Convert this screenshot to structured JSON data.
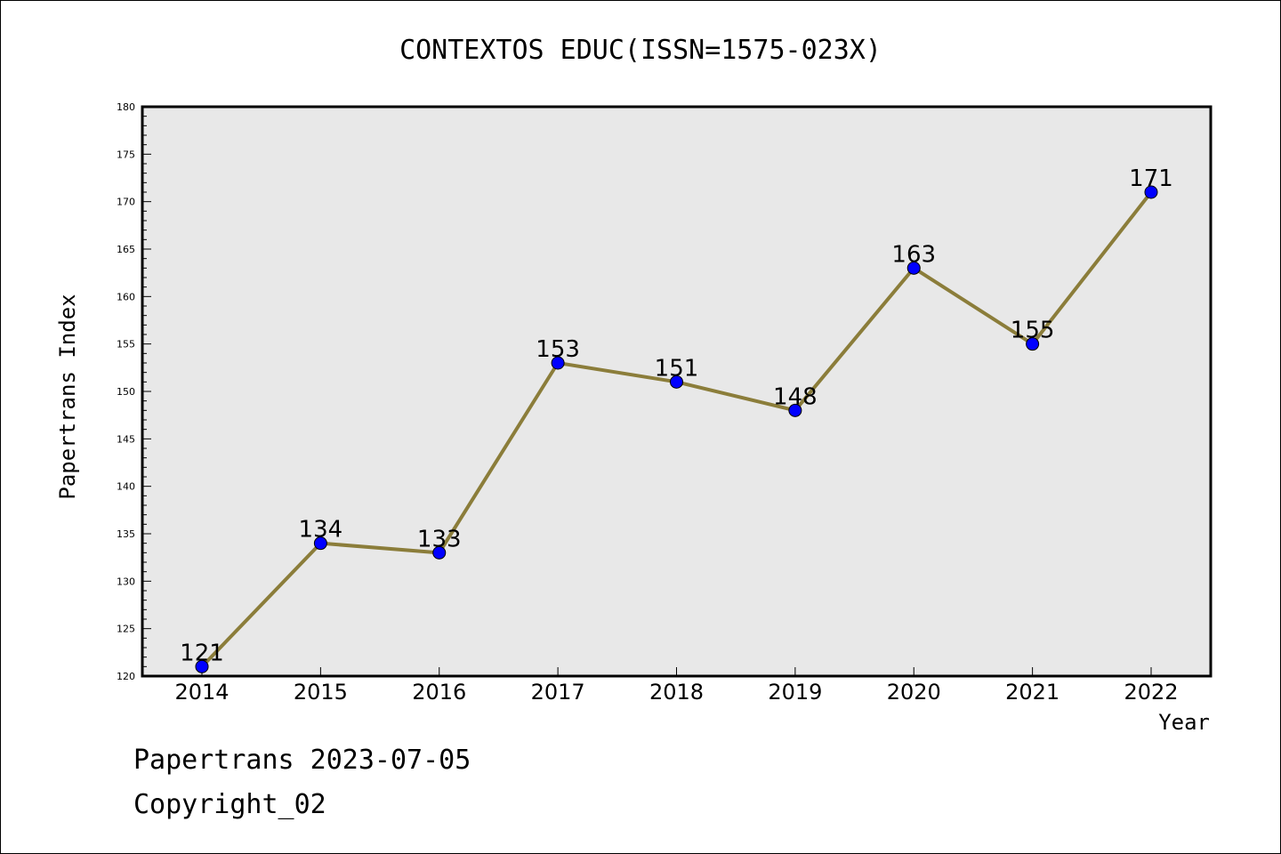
{
  "chart_data": {
    "type": "line",
    "title": "CONTEXTOS EDUC(ISSN=1575-023X)",
    "xlabel": "Year",
    "ylabel": "Papertrans Index",
    "x": [
      "2014",
      "2015",
      "2016",
      "2017",
      "2018",
      "2019",
      "2020",
      "2021",
      "2022"
    ],
    "series": [
      {
        "values": [
          121,
          134,
          133,
          153,
          151,
          148,
          163,
          155,
          171
        ],
        "data_labels": [
          "121",
          "134",
          "133",
          "153",
          "151",
          "148",
          "163",
          "155",
          "171"
        ]
      }
    ],
    "ylim": [
      120,
      180
    ],
    "yticks": [
      "120",
      "125",
      "130",
      "135",
      "140",
      "145",
      "150",
      "155",
      "160",
      "165",
      "170",
      "175",
      "180"
    ],
    "grid": false,
    "colors": {
      "line": "#8b7d3a",
      "marker": "#0000ff",
      "plot_background": "#e8e8e8"
    }
  },
  "footer": {
    "line1": "Papertrans 2023-07-05",
    "line2": "Copyright_02"
  }
}
